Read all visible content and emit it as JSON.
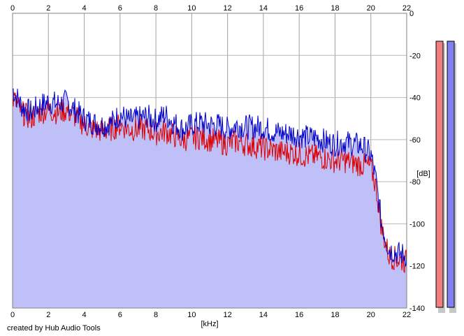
{
  "footer": {
    "credit": "created by Hub Audio Tools"
  },
  "chart_data": {
    "type": "area",
    "xlabel": "[kHz]",
    "ylabel": "[dB]",
    "xlim": [
      0,
      22
    ],
    "ylim": [
      -140,
      0
    ],
    "x_ticks": [
      "0",
      "2",
      "4",
      "6",
      "8",
      "10",
      "12",
      "14",
      "16",
      "18",
      "20",
      "22"
    ],
    "y_ticks": [
      "0",
      "-20",
      "-40",
      "-60",
      "-80",
      "-100",
      "-120",
      "-140"
    ],
    "grid": true,
    "background_fill": "#c0c0f8",
    "series": [
      {
        "color": "#0000cc",
        "x": [
          0,
          0.5,
          1,
          1.5,
          2,
          2.5,
          3,
          3.5,
          4,
          4.5,
          5,
          5.5,
          6,
          6.5,
          7,
          7.5,
          8,
          8.5,
          9,
          9.5,
          10,
          10.5,
          11,
          11.5,
          12,
          12.5,
          13,
          13.5,
          14,
          14.5,
          15,
          15.5,
          16,
          16.5,
          17,
          17.5,
          18,
          18.5,
          19,
          19.5,
          20,
          20.3,
          20.6,
          21,
          21.5,
          22
        ],
        "y": [
          -36,
          -44,
          -47,
          -44,
          -42,
          -43,
          -42,
          -46,
          -50,
          -52,
          -53,
          -52,
          -48,
          -51,
          -50,
          -49,
          -51,
          -48,
          -52,
          -55,
          -53,
          -52,
          -53,
          -53,
          -55,
          -53,
          -54,
          -54,
          -54,
          -56,
          -57,
          -57,
          -58,
          -59,
          -59,
          -61,
          -62,
          -61,
          -62,
          -63,
          -67,
          -80,
          -100,
          -112,
          -114,
          -115
        ]
      },
      {
        "color": "#dd0000",
        "x": [
          0,
          0.5,
          1,
          1.5,
          2,
          2.5,
          3,
          3.5,
          4,
          4.5,
          5,
          5.5,
          6,
          6.5,
          7,
          7.5,
          8,
          8.5,
          9,
          9.5,
          10,
          10.5,
          11,
          11.5,
          12,
          12.5,
          13,
          13.5,
          14,
          14.5,
          15,
          15.5,
          16,
          16.5,
          17,
          17.5,
          18,
          18.5,
          19,
          19.5,
          20,
          20.3,
          20.6,
          21,
          21.5,
          22
        ],
        "y": [
          -40,
          -47,
          -50,
          -47,
          -46,
          -47,
          -46,
          -49,
          -53,
          -55,
          -56,
          -55,
          -53,
          -55,
          -55,
          -55,
          -57,
          -56,
          -58,
          -60,
          -59,
          -59,
          -60,
          -61,
          -62,
          -61,
          -62,
          -63,
          -64,
          -65,
          -66,
          -66,
          -67,
          -68,
          -68,
          -69,
          -70,
          -70,
          -71,
          -72,
          -73,
          -83,
          -102,
          -115,
          -117,
          -118
        ]
      }
    ],
    "meters": [
      {
        "color": "#f08080"
      },
      {
        "color": "#8080f0"
      }
    ]
  }
}
